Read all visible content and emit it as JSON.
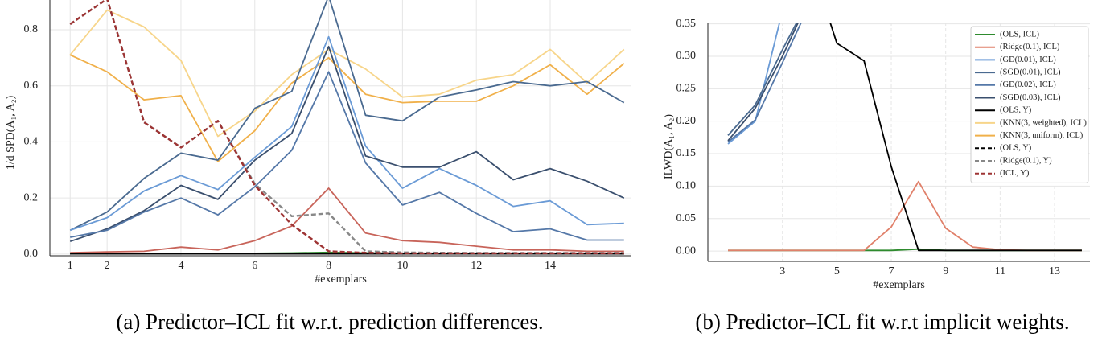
{
  "chart_data": [
    {
      "type": "line",
      "caption": "(a) Predictor–ICL fit w.r.t. prediction differences.",
      "x_label": "#exemplars",
      "y_label": "1/d SPD(A₁, A₂)",
      "x": [
        1,
        2,
        3,
        4,
        5,
        6,
        7,
        8,
        9,
        10,
        11,
        12,
        13,
        14,
        15,
        16
      ],
      "xlim": [
        0.45,
        16.2
      ],
      "xticks": [
        1,
        2,
        4,
        6,
        8,
        10,
        12,
        14
      ],
      "ylim": [
        -0.006,
        0.906
      ],
      "yticks": [
        {
          "value": 0,
          "label": "0.0"
        },
        0.2,
        0.4,
        0.6,
        0.8
      ],
      "grid": true,
      "series": [
        {
          "color": "#f7d58a",
          "dash": false,
          "values": [
            0.71,
            0.87,
            0.81,
            0.69,
            0.42,
            0.51,
            0.64,
            0.73,
            0.66,
            0.56,
            0.57,
            0.62,
            0.64,
            0.73,
            0.61,
            0.73
          ]
        },
        {
          "color": "#f0b04a",
          "dash": false,
          "values": [
            0.71,
            0.65,
            0.55,
            0.565,
            0.33,
            0.44,
            0.61,
            0.7,
            0.57,
            0.54,
            0.545,
            0.545,
            0.6,
            0.675,
            0.57,
            0.68
          ]
        },
        {
          "color": "#4a6a90",
          "dash": false,
          "values": [
            0.085,
            0.15,
            0.27,
            0.36,
            0.335,
            0.52,
            0.58,
            0.92,
            0.495,
            0.475,
            0.56,
            0.585,
            0.615,
            0.6,
            0.615,
            0.54
          ]
        },
        {
          "color": "#6b9bd6",
          "dash": false,
          "values": [
            0.085,
            0.13,
            0.225,
            0.28,
            0.23,
            0.345,
            0.455,
            0.775,
            0.385,
            0.235,
            0.305,
            0.245,
            0.17,
            0.19,
            0.105,
            0.11
          ]
        },
        {
          "color": "#3a4f6e",
          "dash": false,
          "values": [
            0.045,
            0.09,
            0.155,
            0.245,
            0.195,
            0.335,
            0.43,
            0.74,
            0.35,
            0.31,
            0.31,
            0.365,
            0.265,
            0.305,
            0.26,
            0.2
          ]
        },
        {
          "color": "#5578a8",
          "dash": false,
          "values": [
            0.06,
            0.085,
            0.15,
            0.2,
            0.14,
            0.24,
            0.37,
            0.65,
            0.325,
            0.175,
            0.22,
            0.145,
            0.08,
            0.09,
            0.05,
            0.05
          ]
        },
        {
          "color": "#c8645a",
          "dash": false,
          "values": [
            0.005,
            0.008,
            0.01,
            0.025,
            0.015,
            0.048,
            0.1,
            0.235,
            0.075,
            0.048,
            0.042,
            0.028,
            0.015,
            0.015,
            0.01,
            0.01
          ]
        },
        {
          "color": "#2e8b2e",
          "dash": false,
          "values": [
            0.001,
            0.001,
            0.002,
            0.002,
            0.002,
            0.003,
            0.004,
            0.006,
            0.004,
            0.003,
            0.003,
            0.003,
            0.002,
            0.002,
            0.002,
            0.002
          ]
        },
        {
          "color": "#000000",
          "dash": false,
          "values": [
            0.001,
            0.001,
            0.001,
            0.001,
            0.001,
            0.001,
            0.001,
            0.001,
            0.001,
            0.001,
            0.001,
            0.001,
            0.001,
            0.001,
            0.001,
            0.001
          ]
        },
        {
          "color": "#888888",
          "dash": true,
          "values": [
            0.82,
            0.91,
            0.47,
            0.38,
            0.475,
            0.25,
            0.135,
            0.145,
            0.01,
            0.006,
            0.005,
            0.004,
            0.004,
            0.004,
            0.004,
            0.004
          ]
        },
        {
          "color": "#000000",
          "dash": true,
          "values": [
            0.002,
            0.002,
            0.002,
            0.002,
            0.002,
            0.002,
            0.002,
            0.002,
            0.002,
            0.002,
            0.002,
            0.002,
            0.002,
            0.002,
            0.002,
            0.002
          ]
        },
        {
          "color": "#9e3434",
          "dash": true,
          "values": [
            0.82,
            0.91,
            0.47,
            0.38,
            0.475,
            0.245,
            0.105,
            0.01,
            0.005,
            0.003,
            0.003,
            0.003,
            0.003,
            0.003,
            0.003,
            0.003
          ]
        }
      ]
    },
    {
      "type": "line",
      "caption": "(b) Predictor–ICL fit w.r.t implicit weights.",
      "x_label": "#exemplars",
      "y_label": "ILWD(A₁, A₂)",
      "x": [
        1,
        2,
        3,
        4,
        5,
        6,
        7,
        8,
        9,
        10,
        11,
        12,
        13,
        14
      ],
      "xlim": [
        0.26,
        14.3
      ],
      "xticks": [
        3,
        5,
        7,
        9,
        11,
        13
      ],
      "ylim": [
        -0.016,
        0.352
      ],
      "yticks": [
        {
          "value": 0,
          "label": "0.00"
        },
        {
          "value": 0.05,
          "label": "0.05"
        },
        {
          "value": 0.1,
          "label": "0.10"
        },
        {
          "value": 0.15,
          "label": "0.15"
        },
        {
          "value": 0.2,
          "label": "0.20"
        },
        {
          "value": 0.25,
          "label": "0.25"
        },
        {
          "value": 0.3,
          "label": "0.30"
        },
        {
          "value": 0.35,
          "label": "0.35"
        }
      ],
      "grid": true,
      "legend": "upper right",
      "series": [
        {
          "name": "(OLS, ICL)",
          "color": "#2e8b2e",
          "dash": false,
          "values": [
            0.001,
            0.001,
            0.001,
            0.001,
            0.001,
            0.001,
            0.001,
            0.003,
            0.001,
            0.001,
            0.001,
            0.001,
            0.001,
            0.001
          ]
        },
        {
          "name": "(Ridge(0.1), ICL)",
          "color": "#e0806a",
          "dash": false,
          "values": [
            0.001,
            0.001,
            0.001,
            0.001,
            0.001,
            0.001,
            0.037,
            0.107,
            0.035,
            0.006,
            0.002,
            0.001,
            0.001,
            0.001
          ]
        },
        {
          "name": "(GD(0.01), ICL)",
          "color": "#6b9bd6",
          "dash": false,
          "values": [
            0.165,
            0.2,
            0.37,
            null,
            null,
            null,
            null,
            null,
            null,
            null,
            null,
            null,
            null,
            null
          ]
        },
        {
          "name": "(SGD(0.01), ICL)",
          "color": "#4a6a90",
          "dash": false,
          "values": [
            0.178,
            0.225,
            0.31,
            0.39,
            null,
            null,
            null,
            null,
            null,
            null,
            null,
            null,
            null,
            null
          ]
        },
        {
          "name": "(GD(0.02), ICL)",
          "color": "#5578a8",
          "dash": false,
          "values": [
            0.168,
            0.202,
            0.29,
            0.38,
            null,
            null,
            null,
            null,
            null,
            null,
            null,
            null,
            null,
            null
          ]
        },
        {
          "name": "(SGD(0.03), ICL)",
          "color": "#3a4f6e",
          "dash": false,
          "values": [
            0.17,
            0.22,
            0.3,
            0.39,
            null,
            null,
            null,
            null,
            null,
            null,
            null,
            null,
            null,
            null
          ]
        },
        {
          "name": "(OLS, Y)",
          "color": "#000000",
          "dash": false,
          "values": [
            null,
            null,
            null,
            0.45,
            0.32,
            0.293,
            0.13,
            0.001,
            0.001,
            0.001,
            0.001,
            0.001,
            0.001,
            0.001
          ]
        },
        {
          "name": "(KNN(3, weighted), ICL)",
          "color": "#f7d58a",
          "dash": false,
          "values": [
            null,
            null,
            null,
            null,
            null,
            null,
            null,
            null,
            null,
            null,
            null,
            null,
            null,
            null
          ]
        },
        {
          "name": "(KNN(3, uniform), ICL)",
          "color": "#f0b04a",
          "dash": false,
          "values": [
            null,
            null,
            null,
            null,
            null,
            null,
            null,
            null,
            null,
            null,
            null,
            null,
            null,
            null
          ]
        },
        {
          "name": "(OLS, Y)",
          "color": "#000000",
          "dash": true,
          "values": [
            null,
            null,
            null,
            null,
            null,
            null,
            null,
            null,
            null,
            null,
            null,
            null,
            null,
            null
          ]
        },
        {
          "name": "(Ridge(0.1), Y)",
          "color": "#888888",
          "dash": true,
          "values": [
            null,
            null,
            null,
            null,
            null,
            null,
            null,
            null,
            null,
            null,
            null,
            null,
            null,
            null
          ]
        },
        {
          "name": "(ICL, Y)",
          "color": "#9e3434",
          "dash": true,
          "values": [
            null,
            null,
            null,
            null,
            null,
            null,
            null,
            null,
            null,
            null,
            null,
            null,
            null,
            null
          ]
        }
      ]
    }
  ]
}
